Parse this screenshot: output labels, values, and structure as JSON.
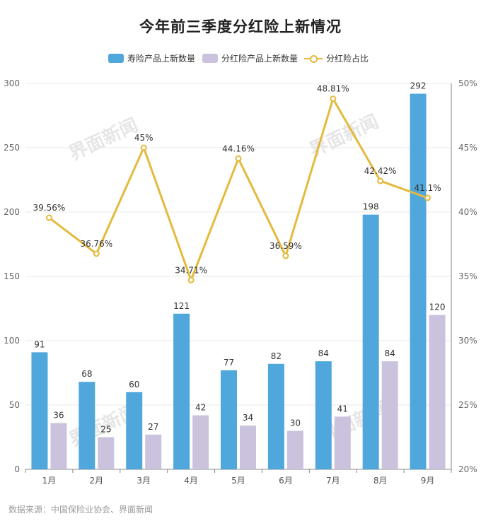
{
  "title": "今年前三季度分红险上新情况",
  "source": "数据来源：中国保险业协会、界面新闻",
  "watermark": "界面新闻",
  "chart_data": {
    "type": "bar",
    "categories": [
      "1月",
      "2月",
      "3月",
      "4月",
      "5月",
      "6月",
      "7月",
      "8月",
      "9月"
    ],
    "series": [
      {
        "name": "寿险产品上新数量",
        "type": "bar",
        "axis": "left",
        "color": "#4fa7dc",
        "values": [
          91,
          68,
          60,
          121,
          77,
          82,
          84,
          198,
          292
        ],
        "labels": [
          "91",
          "68",
          "60",
          "121",
          "77",
          "82",
          "84",
          "198",
          "292"
        ]
      },
      {
        "name": "分红险产品上新数量",
        "type": "bar",
        "axis": "right-bars",
        "color": "#cbc3dd",
        "values": [
          36,
          25,
          27,
          42,
          34,
          30,
          41,
          84,
          120
        ],
        "labels": [
          "36",
          "25",
          "27",
          "42",
          "34",
          "30",
          "41",
          "84",
          "120"
        ]
      },
      {
        "name": "分红险占比",
        "type": "line",
        "axis": "right",
        "color": "#e4ba3c",
        "values": [
          39.56,
          36.76,
          45,
          34.71,
          44.16,
          36.59,
          48.81,
          42.42,
          41.1
        ],
        "labels": [
          "39.56%",
          "36.76%",
          "45%",
          "34.71%",
          "44.16%",
          "36.59%",
          "48.81%",
          "42.42%",
          "41.1%"
        ]
      }
    ],
    "ylim": [
      0,
      300
    ],
    "yticks": [
      "0",
      "50",
      "100",
      "150",
      "200",
      "250",
      "300"
    ],
    "y2lim": [
      20,
      50
    ],
    "y2ticks": [
      "20%",
      "25%",
      "30%",
      "35%",
      "40%",
      "45%",
      "50%"
    ],
    "grid": true,
    "legend": "top-center"
  }
}
